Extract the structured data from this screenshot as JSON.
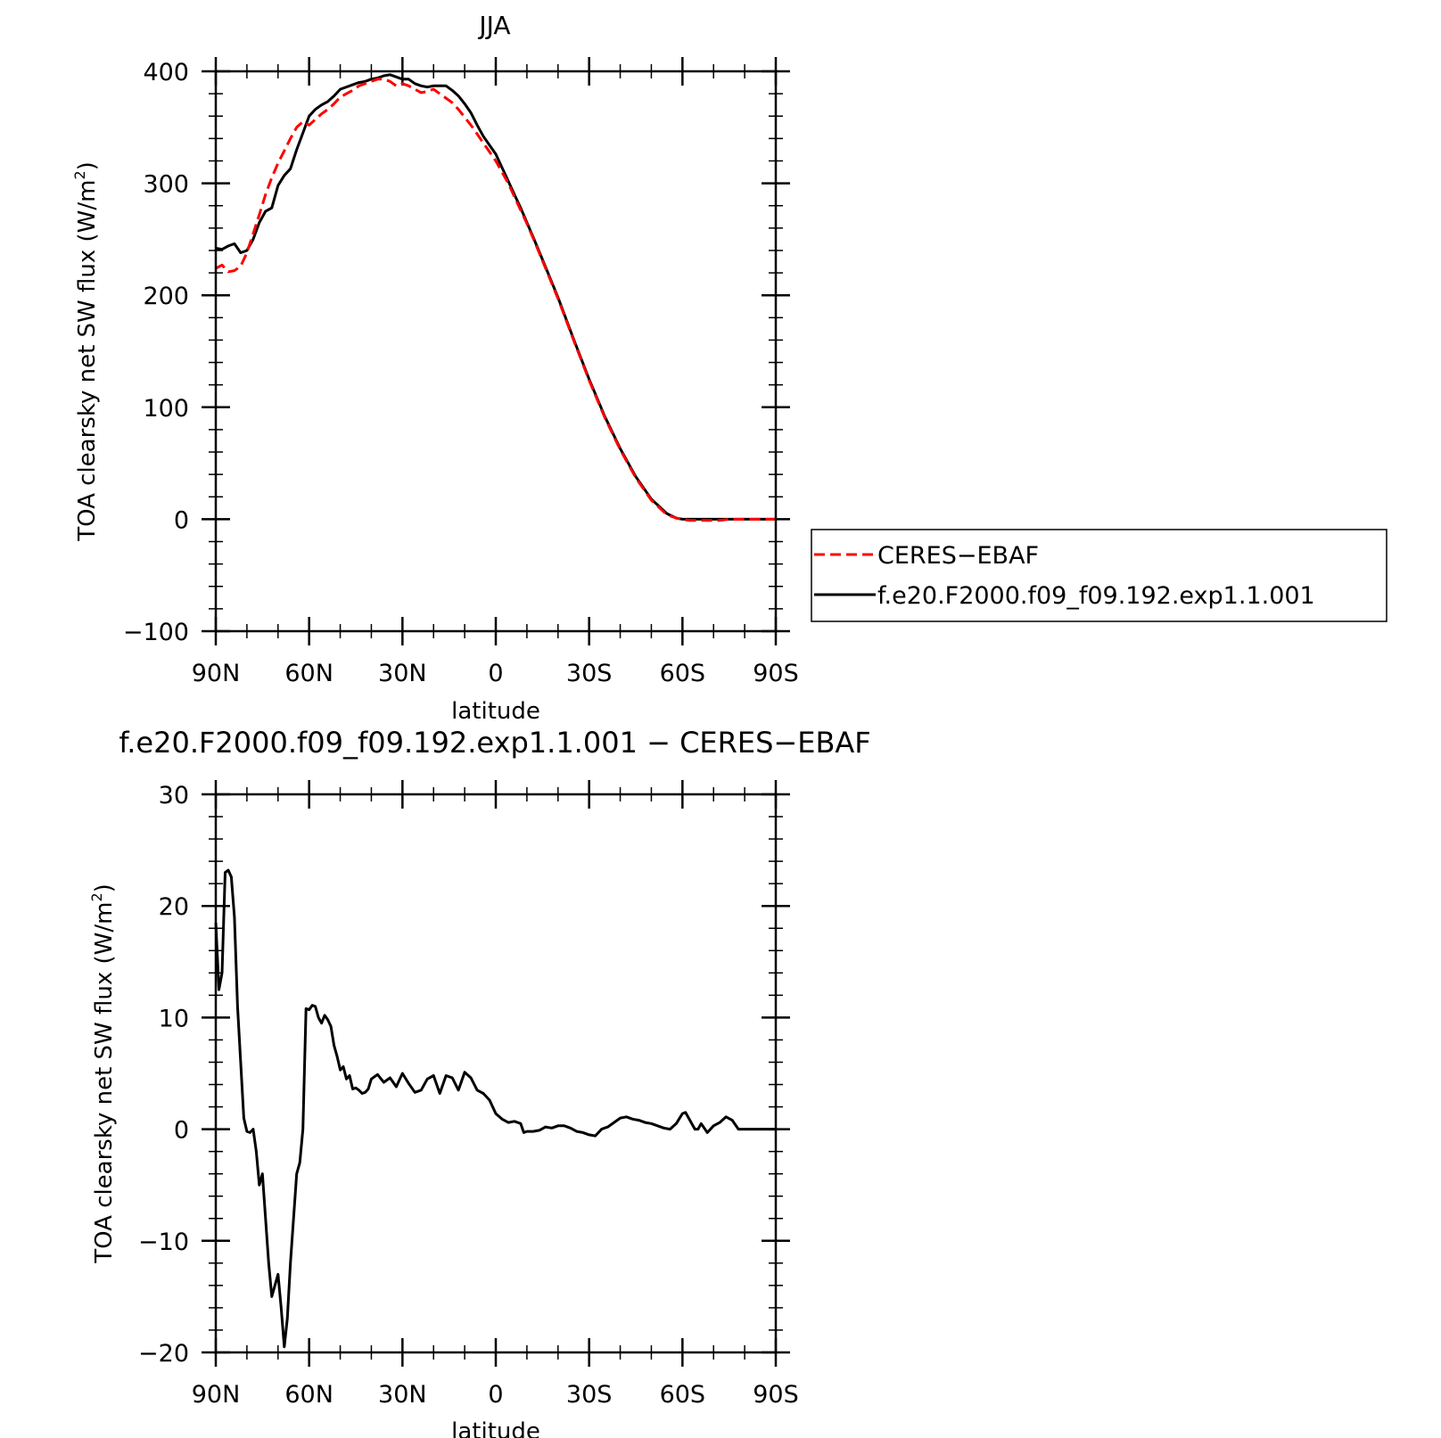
{
  "chart_data": [
    {
      "type": "line",
      "title": "JJA",
      "xlabel": "latitude",
      "ylabel_main": "TOA clearsky net SW flux (W/m",
      "ylabel_sup": "2",
      "ylabel_close": ")",
      "xlim": [
        90,
        -90
      ],
      "ylim": [
        -100,
        400
      ],
      "x_ticks": [
        90,
        60,
        30,
        0,
        -30,
        -60,
        -90
      ],
      "x_tick_labels": [
        "90N",
        "60N",
        "30N",
        "0",
        "30S",
        "60S",
        "90S"
      ],
      "y_ticks": [
        -100,
        0,
        100,
        200,
        300,
        400
      ],
      "y_tick_labels": [
        "−100",
        "0",
        "100",
        "200",
        "300",
        "400"
      ],
      "legend_position": "right",
      "series": [
        {
          "name": "CERES−EBAF",
          "color": "#ff0000",
          "dash": "dashed",
          "x": [
            90,
            88,
            86,
            84,
            82,
            80,
            78,
            76,
            74,
            72,
            70,
            68,
            66,
            64,
            62,
            60,
            58,
            56,
            54,
            52,
            50,
            48,
            46,
            44,
            42,
            40,
            38,
            36,
            34,
            32,
            30,
            28,
            26,
            24,
            22,
            20,
            18,
            16,
            14,
            12,
            10,
            8,
            6,
            4,
            2,
            0,
            -2,
            -4,
            -6,
            -8,
            -10,
            -12,
            -15,
            -20,
            -25,
            -30,
            -35,
            -40,
            -45,
            -50,
            -55,
            -58,
            -60,
            -62,
            -64,
            -66,
            -68,
            -70,
            -72,
            -75,
            -78,
            -80,
            -84,
            -90
          ],
          "y": [
            224,
            227,
            221,
            222,
            226,
            238,
            255,
            272,
            290,
            305,
            318,
            329,
            340,
            350,
            355,
            352,
            357,
            362,
            366,
            371,
            377,
            380,
            383,
            387,
            389,
            391,
            393,
            393,
            391,
            387,
            389,
            387,
            384,
            381,
            382,
            384,
            380,
            376,
            372,
            366,
            359,
            352,
            344,
            336,
            328,
            320,
            310,
            300,
            288,
            276,
            264,
            251,
            231,
            197,
            160,
            124,
            91,
            62,
            37,
            17,
            4,
            1,
            0,
            -1,
            -1,
            -1,
            -1,
            -1,
            -1,
            0,
            0,
            0,
            0,
            0
          ]
        },
        {
          "name": "f.e20.F2000.f09_f09.192.exp1.1.001",
          "color": "#000000",
          "dash": "solid",
          "x": [
            90,
            88,
            86,
            84,
            82,
            80,
            78,
            76,
            74,
            72,
            70,
            68,
            66,
            64,
            62,
            60,
            58,
            56,
            54,
            52,
            50,
            48,
            46,
            44,
            42,
            40,
            38,
            36,
            34,
            32,
            30,
            28,
            26,
            24,
            22,
            20,
            18,
            16,
            14,
            12,
            10,
            8,
            6,
            4,
            2,
            0,
            -2,
            -4,
            -6,
            -8,
            -10,
            -12,
            -15,
            -20,
            -25,
            -30,
            -35,
            -40,
            -45,
            -50,
            -55,
            -58,
            -60,
            -62,
            -64,
            -66,
            -68,
            -70,
            -72,
            -75,
            -78,
            -80,
            -84,
            -90
          ],
          "y": [
            242,
            241,
            244,
            246,
            238,
            240,
            250,
            265,
            275,
            278,
            298,
            307,
            313,
            330,
            345,
            360,
            366,
            370,
            373,
            378,
            384,
            386,
            388,
            390,
            391,
            393,
            394,
            396,
            397,
            395,
            393,
            393,
            389,
            387,
            386,
            387,
            387,
            387,
            383,
            378,
            371,
            363,
            352,
            342,
            334,
            326,
            314,
            302,
            290,
            278,
            265,
            252,
            232,
            198,
            161,
            125,
            92,
            63,
            38,
            18,
            5,
            1,
            0,
            0,
            0,
            0,
            0,
            0,
            0,
            0,
            0,
            0,
            0,
            0
          ]
        }
      ]
    },
    {
      "type": "line",
      "title": "f.e20.F2000.f09_f09.192.exp1.1.001 − CERES−EBAF",
      "xlabel": "latitude",
      "ylabel_main": "TOA clearsky net SW flux (W/m",
      "ylabel_sup": "2",
      "ylabel_close": ")",
      "xlim": [
        90,
        -90
      ],
      "ylim": [
        -20,
        30
      ],
      "x_ticks": [
        90,
        60,
        30,
        0,
        -30,
        -60,
        -90
      ],
      "x_tick_labels": [
        "90N",
        "60N",
        "30N",
        "0",
        "30S",
        "60S",
        "90S"
      ],
      "y_ticks": [
        -20,
        -10,
        0,
        10,
        20,
        30
      ],
      "y_tick_labels": [
        "−20",
        "−10",
        "0",
        "10",
        "20",
        "30"
      ],
      "series": [
        {
          "color": "#000000",
          "dash": "solid",
          "x": [
            90,
            89,
            88,
            87,
            86,
            85,
            84,
            83,
            82,
            81,
            80,
            79,
            78,
            77,
            76,
            75,
            74,
            73,
            72,
            71,
            70,
            69,
            68,
            67,
            66,
            65,
            64,
            63,
            62,
            61,
            60,
            59,
            58,
            57,
            56,
            55,
            54,
            53,
            52,
            51,
            50,
            49,
            48,
            47,
            46,
            45,
            44,
            43,
            42,
            41,
            40,
            38,
            36,
            34,
            32,
            30,
            28,
            26,
            24,
            22,
            20,
            18,
            16,
            14,
            12,
            10,
            8,
            6,
            4,
            2,
            0,
            -2,
            -4,
            -6,
            -8,
            -9,
            -10,
            -12,
            -14,
            -16,
            -18,
            -20,
            -22,
            -24,
            -26,
            -28,
            -30,
            -32,
            -34,
            -36,
            -38,
            -40,
            -42,
            -44,
            -46,
            -48,
            -50,
            -52,
            -54,
            -56,
            -58,
            -60,
            -61,
            -62,
            -64,
            -65,
            -66,
            -68,
            -70,
            -72,
            -74,
            -76,
            -78,
            -80,
            -84,
            -90
          ],
          "y": [
            18.5,
            12.5,
            14,
            23,
            23.2,
            22.6,
            19,
            11,
            6,
            1,
            -0.2,
            -0.3,
            0,
            -2,
            -5,
            -4,
            -8,
            -12,
            -15,
            -14,
            -13,
            -16,
            -19.5,
            -17,
            -12,
            -8,
            -4,
            -3,
            0,
            10.8,
            10.7,
            11.1,
            11,
            10,
            9.5,
            10.2,
            9.8,
            9.2,
            7.5,
            6.5,
            5.3,
            5.6,
            4.5,
            4.8,
            3.6,
            3.7,
            3.5,
            3.2,
            3.3,
            3.6,
            4.5,
            4.9,
            4.2,
            4.6,
            3.8,
            5,
            4.1,
            3.3,
            3.5,
            4.5,
            4.8,
            3.2,
            4.8,
            4.6,
            3.5,
            5.1,
            4.6,
            3.5,
            3.2,
            2.6,
            1.4,
            0.9,
            0.6,
            0.7,
            0.5,
            -0.3,
            -0.2,
            -0.2,
            -0.1,
            0.2,
            0.1,
            0.3,
            0.3,
            0.1,
            -0.2,
            -0.3,
            -0.5,
            -0.6,
            0,
            0.2,
            0.6,
            1,
            1.1,
            0.9,
            0.8,
            0.6,
            0.5,
            0.3,
            0.1,
            0,
            0.5,
            1.4,
            1.5,
            1,
            0,
            0,
            0.5,
            -0.3,
            0.3,
            0.6,
            1.1,
            0.8,
            0,
            0,
            0,
            0
          ]
        }
      ]
    }
  ]
}
